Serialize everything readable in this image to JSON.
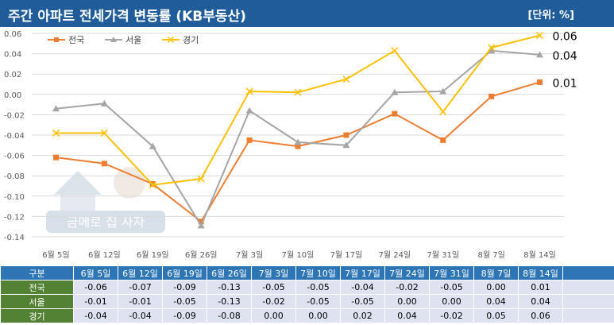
{
  "title": "주간 아파트 전세가격 변동률 (KB부동산)",
  "unit": "[단위: %]",
  "watermark": {
    "name": "금메로 집 사자",
    "icon": "house-logo"
  },
  "colors": {
    "전국": "#ed7d31",
    "서울": "#a5a5a5",
    "경기": "#ffc000",
    "title_bg": "#1f5c99",
    "table_header": "#2e75b6",
    "table_rowhead": "#548235",
    "table_cell": "#dfe3f1"
  },
  "chart_data": {
    "type": "line",
    "categories": [
      "6월 5일",
      "6월 12일",
      "6월 19일",
      "6월 26일",
      "7월 3일",
      "7월 10일",
      "7월 17일",
      "7월 24일",
      "7월 31일",
      "8월 7일",
      "8월 14일"
    ],
    "series": [
      {
        "name": "전국",
        "values": [
          -0.062,
          -0.068,
          -0.088,
          -0.125,
          -0.045,
          -0.051,
          -0.04,
          -0.019,
          -0.045,
          -0.002,
          0.012
        ],
        "marker": "square"
      },
      {
        "name": "서울",
        "values": [
          -0.014,
          -0.009,
          -0.051,
          -0.129,
          -0.016,
          -0.047,
          -0.05,
          0.002,
          0.003,
          0.043,
          0.039
        ],
        "marker": "triangle"
      },
      {
        "name": "경기",
        "values": [
          -0.038,
          -0.038,
          -0.089,
          -0.083,
          0.003,
          0.002,
          0.015,
          0.043,
          -0.017,
          0.046,
          0.058
        ],
        "marker": "x"
      }
    ],
    "end_labels": [
      {
        "series": "경기",
        "text": "0.06"
      },
      {
        "series": "서울",
        "text": "0.04"
      },
      {
        "series": "전국",
        "text": "0.01"
      }
    ],
    "ylim": [
      -0.14,
      0.06
    ],
    "yticks": [
      "0.06",
      "0.04",
      "0.02",
      "0.00",
      "-0.02",
      "-0.04",
      "-0.06",
      "-0.08",
      "-0.10",
      "-0.12",
      "-0.14"
    ],
    "legend": "top-left",
    "grid": true
  },
  "table": {
    "header_label": "구분",
    "columns": [
      "6월 5일",
      "6월 12일",
      "6월 19일",
      "6월 26일",
      "7월 3일",
      "7월 10일",
      "7월 17일",
      "7월 24일",
      "7월 31일",
      "8월 7일",
      "8월 14일"
    ],
    "rows": [
      {
        "label": "전국",
        "values": [
          "-0.06",
          "-0.07",
          "-0.09",
          "-0.13",
          "-0.05",
          "-0.05",
          "-0.04",
          "-0.02",
          "-0.05",
          "0.00",
          "0.01"
        ]
      },
      {
        "label": "서울",
        "values": [
          "-0.01",
          "-0.01",
          "-0.05",
          "-0.13",
          "-0.02",
          "-0.05",
          "-0.05",
          "0.00",
          "0.00",
          "0.04",
          "0.04"
        ]
      },
      {
        "label": "경기",
        "values": [
          "-0.04",
          "-0.04",
          "-0.09",
          "-0.08",
          "0.00",
          "0.00",
          "0.02",
          "0.04",
          "-0.02",
          "0.05",
          "0.06"
        ]
      }
    ]
  }
}
